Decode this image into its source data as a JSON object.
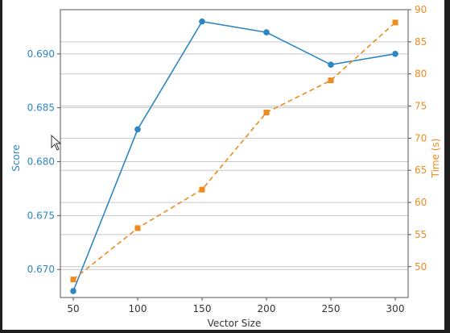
{
  "chart_data": {
    "type": "line",
    "title": "",
    "xlabel": "Vector Size",
    "x": [
      50,
      100,
      150,
      200,
      250,
      300
    ],
    "xticks": [
      50,
      100,
      150,
      200,
      250,
      300
    ],
    "xlim": [
      40,
      310
    ],
    "grid": "horizontal",
    "legend": "none",
    "series": [
      {
        "axis": "left",
        "values": [
          0.668,
          0.683,
          0.693,
          0.692,
          0.689,
          0.69
        ],
        "color": "#2e86c1",
        "linestyle": "solid",
        "marker": "circle"
      },
      {
        "axis": "right",
        "values": [
          48,
          56,
          62,
          74,
          79,
          88
        ],
        "color": "#ef8a1c",
        "linestyle": "dashed",
        "marker": "square"
      }
    ],
    "y_left": {
      "label": "Score",
      "ticks": [
        "0.670",
        "0.675",
        "0.680",
        "0.685",
        "0.690"
      ],
      "tick_values": [
        0.67,
        0.675,
        0.68,
        0.685,
        0.69
      ],
      "lim": [
        0.6674,
        0.6941
      ],
      "color": "#2e86c1"
    },
    "y_right": {
      "label": "Time (s)",
      "ticks": [
        50,
        55,
        60,
        65,
        70,
        75,
        80,
        85,
        90
      ],
      "lim": [
        45.2,
        90.0
      ],
      "color": "#ef8a1c"
    }
  },
  "ui": {
    "cursor_icon": "mouse-pointer-icon"
  }
}
